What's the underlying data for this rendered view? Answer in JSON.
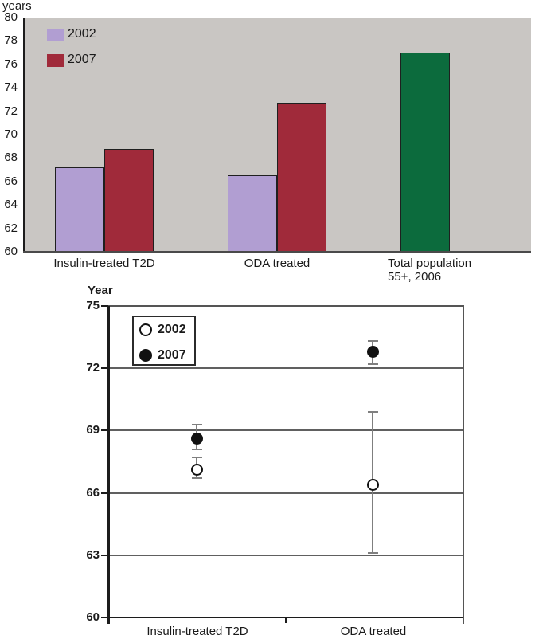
{
  "chart_data": [
    {
      "type": "bar",
      "title": "",
      "ylabel": "years",
      "xlabel": "",
      "ylim": [
        60,
        80
      ],
      "yticks": [
        80,
        78,
        76,
        74,
        72,
        70,
        68,
        66,
        64,
        62,
        60
      ],
      "categories": [
        "Insulin-treated T2D",
        "ODA treated",
        "Total population\n55+, 2006"
      ],
      "series": [
        {
          "name": "2002",
          "color": "#b19ed2",
          "values": [
            67.2,
            66.5,
            null
          ]
        },
        {
          "name": "2007",
          "color": "#a02a3a",
          "values": [
            68.8,
            72.7,
            null
          ]
        },
        {
          "name": "Total population 55+, 2006",
          "color": "#0c6b3d",
          "values": [
            null,
            null,
            77
          ]
        }
      ],
      "legend_position": "top-left",
      "legend_entries": [
        "2002",
        "2007"
      ],
      "plot_background": "#c9c6c3",
      "grid": false
    },
    {
      "type": "scatter",
      "title": "",
      "ylabel": "Year",
      "xlabel": "",
      "ylim": [
        60,
        75
      ],
      "yticks": [
        75,
        72,
        69,
        66,
        63,
        60
      ],
      "categories": [
        "Insulin-treated T2D",
        "ODA treated"
      ],
      "series": [
        {
          "name": "2002",
          "marker": "open-circle",
          "means": [
            67.1,
            66.4
          ],
          "ci_low": [
            66.7,
            63.1
          ],
          "ci_high": [
            67.7,
            69.9
          ]
        },
        {
          "name": "2007",
          "marker": "filled-circle",
          "means": [
            68.6,
            72.8
          ],
          "ci_low": [
            68.1,
            72.2
          ],
          "ci_high": [
            69.3,
            73.3
          ]
        }
      ],
      "legend_position": "top-left",
      "legend_entries": [
        "2002",
        "2007"
      ],
      "plot_background": "#ffffff",
      "grid": true
    }
  ],
  "colors": {
    "purple_2002": "#b19ed2",
    "red_2007": "#a02a3a",
    "green_total": "#0c6b3d",
    "plot_gray": "#c9c6c3",
    "grid_gray": "#606060",
    "axis_dark": "#1c1c1c",
    "axis_soft": "#4a4a4a",
    "error_bar_gray": "#7f7f7f",
    "marker_black": "#111111"
  }
}
